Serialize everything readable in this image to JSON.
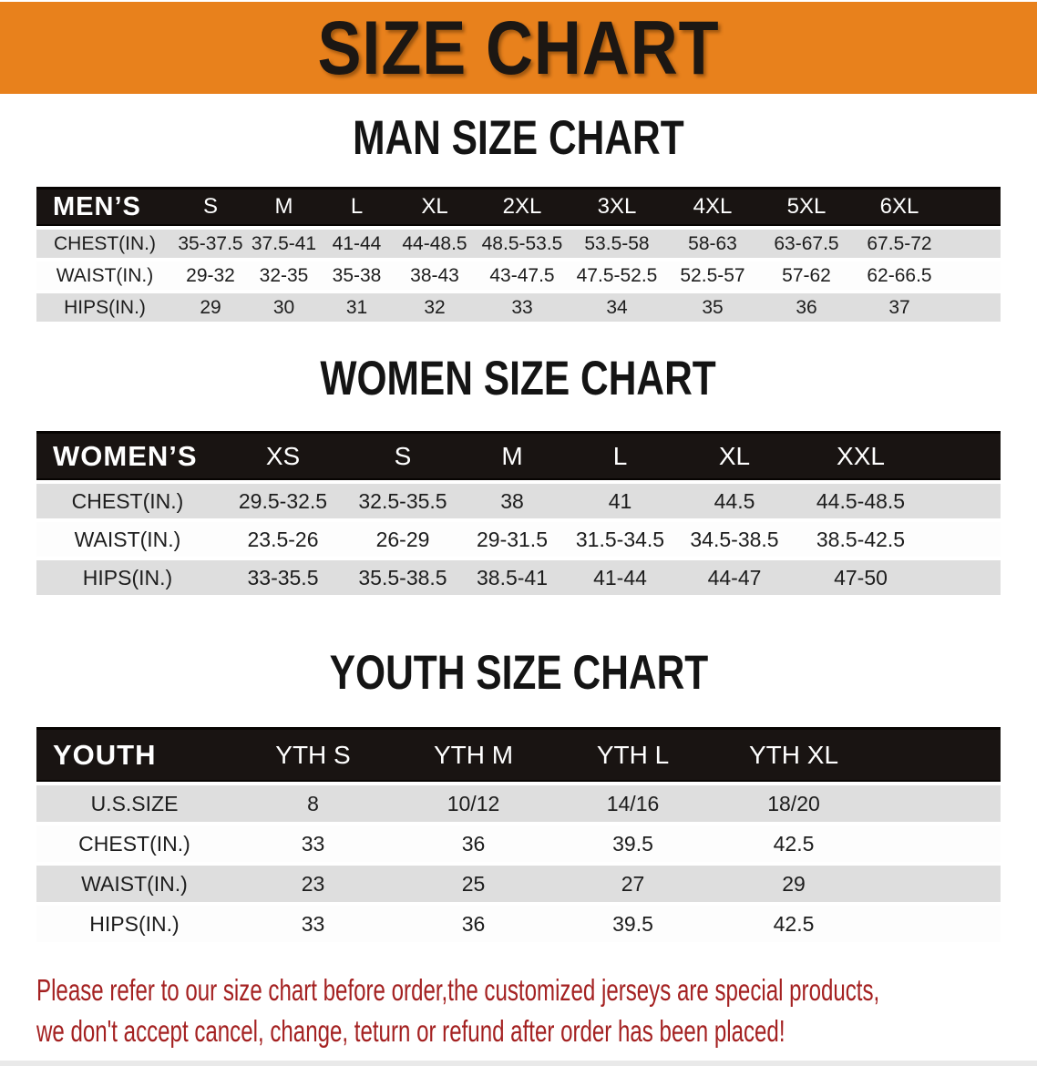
{
  "banner": {
    "title": "SIZE CHART"
  },
  "sections": [
    {
      "heading": "MAN SIZE CHART",
      "table": {
        "label": "MEN’S",
        "columns": [
          "S",
          "M",
          "L",
          "XL",
          "2XL",
          "3XL",
          "4XL",
          "5XL",
          "6XL"
        ],
        "rows": [
          {
            "label": "CHEST(IN.)",
            "values": [
              "35-37.5",
              "37.5-41",
              "41-44",
              "44-48.5",
              "48.5-53.5",
              "53.5-58",
              "58-63",
              "63-67.5",
              "67.5-72"
            ]
          },
          {
            "label": "WAIST(IN.)",
            "values": [
              "29-32",
              "32-35",
              "35-38",
              "38-43",
              "43-47.5",
              "47.5-52.5",
              "52.5-57",
              "57-62",
              "62-66.5"
            ]
          },
          {
            "label": "HIPS(IN.)",
            "values": [
              "29",
              "30",
              "31",
              "32",
              "33",
              "34",
              "35",
              "36",
              "37"
            ]
          }
        ]
      }
    },
    {
      "heading": "WOMEN SIZE CHART",
      "table": {
        "label": "WOMEN’S",
        "columns": [
          "XS",
          "S",
          "M",
          "L",
          "XL",
          "XXL"
        ],
        "rows": [
          {
            "label": "CHEST(IN.)",
            "values": [
              "29.5-32.5",
              "32.5-35.5",
              "38",
              "41",
              "44.5",
              "44.5-48.5"
            ]
          },
          {
            "label": "WAIST(IN.)",
            "values": [
              "23.5-26",
              "26-29",
              "29-31.5",
              "31.5-34.5",
              "34.5-38.5",
              "38.5-42.5"
            ]
          },
          {
            "label": "HIPS(IN.)",
            "values": [
              "33-35.5",
              "35.5-38.5",
              "38.5-41",
              "41-44",
              "44-47",
              "47-50"
            ]
          }
        ]
      }
    },
    {
      "heading": "YOUTH SIZE CHART",
      "table": {
        "label": "YOUTH",
        "columns": [
          "YTH S",
          "YTH M",
          "YTH L",
          "YTH XL"
        ],
        "rows": [
          {
            "label": "U.S.SIZE",
            "values": [
              "8",
              "10/12",
              "14/16",
              "18/20"
            ]
          },
          {
            "label": "CHEST(IN.)",
            "values": [
              "33",
              "36",
              "39.5",
              "42.5"
            ]
          },
          {
            "label": "WAIST(IN.)",
            "values": [
              "23",
              "25",
              "27",
              "29"
            ]
          },
          {
            "label": "HIPS(IN.)",
            "values": [
              "33",
              "36",
              "39.5",
              "42.5"
            ]
          }
        ]
      }
    }
  ],
  "disclaimer": {
    "line1": "Please refer to our size chart before order,the customized jerseys are special products,",
    "line2": "we don't accept cancel, change, teturn or refund after order has been placed!"
  },
  "colors": {
    "banner_orange": "#E8811C",
    "header_black": "#191412",
    "row_gray": "#DEDEDE",
    "disclaimer_red": "#A42121"
  }
}
